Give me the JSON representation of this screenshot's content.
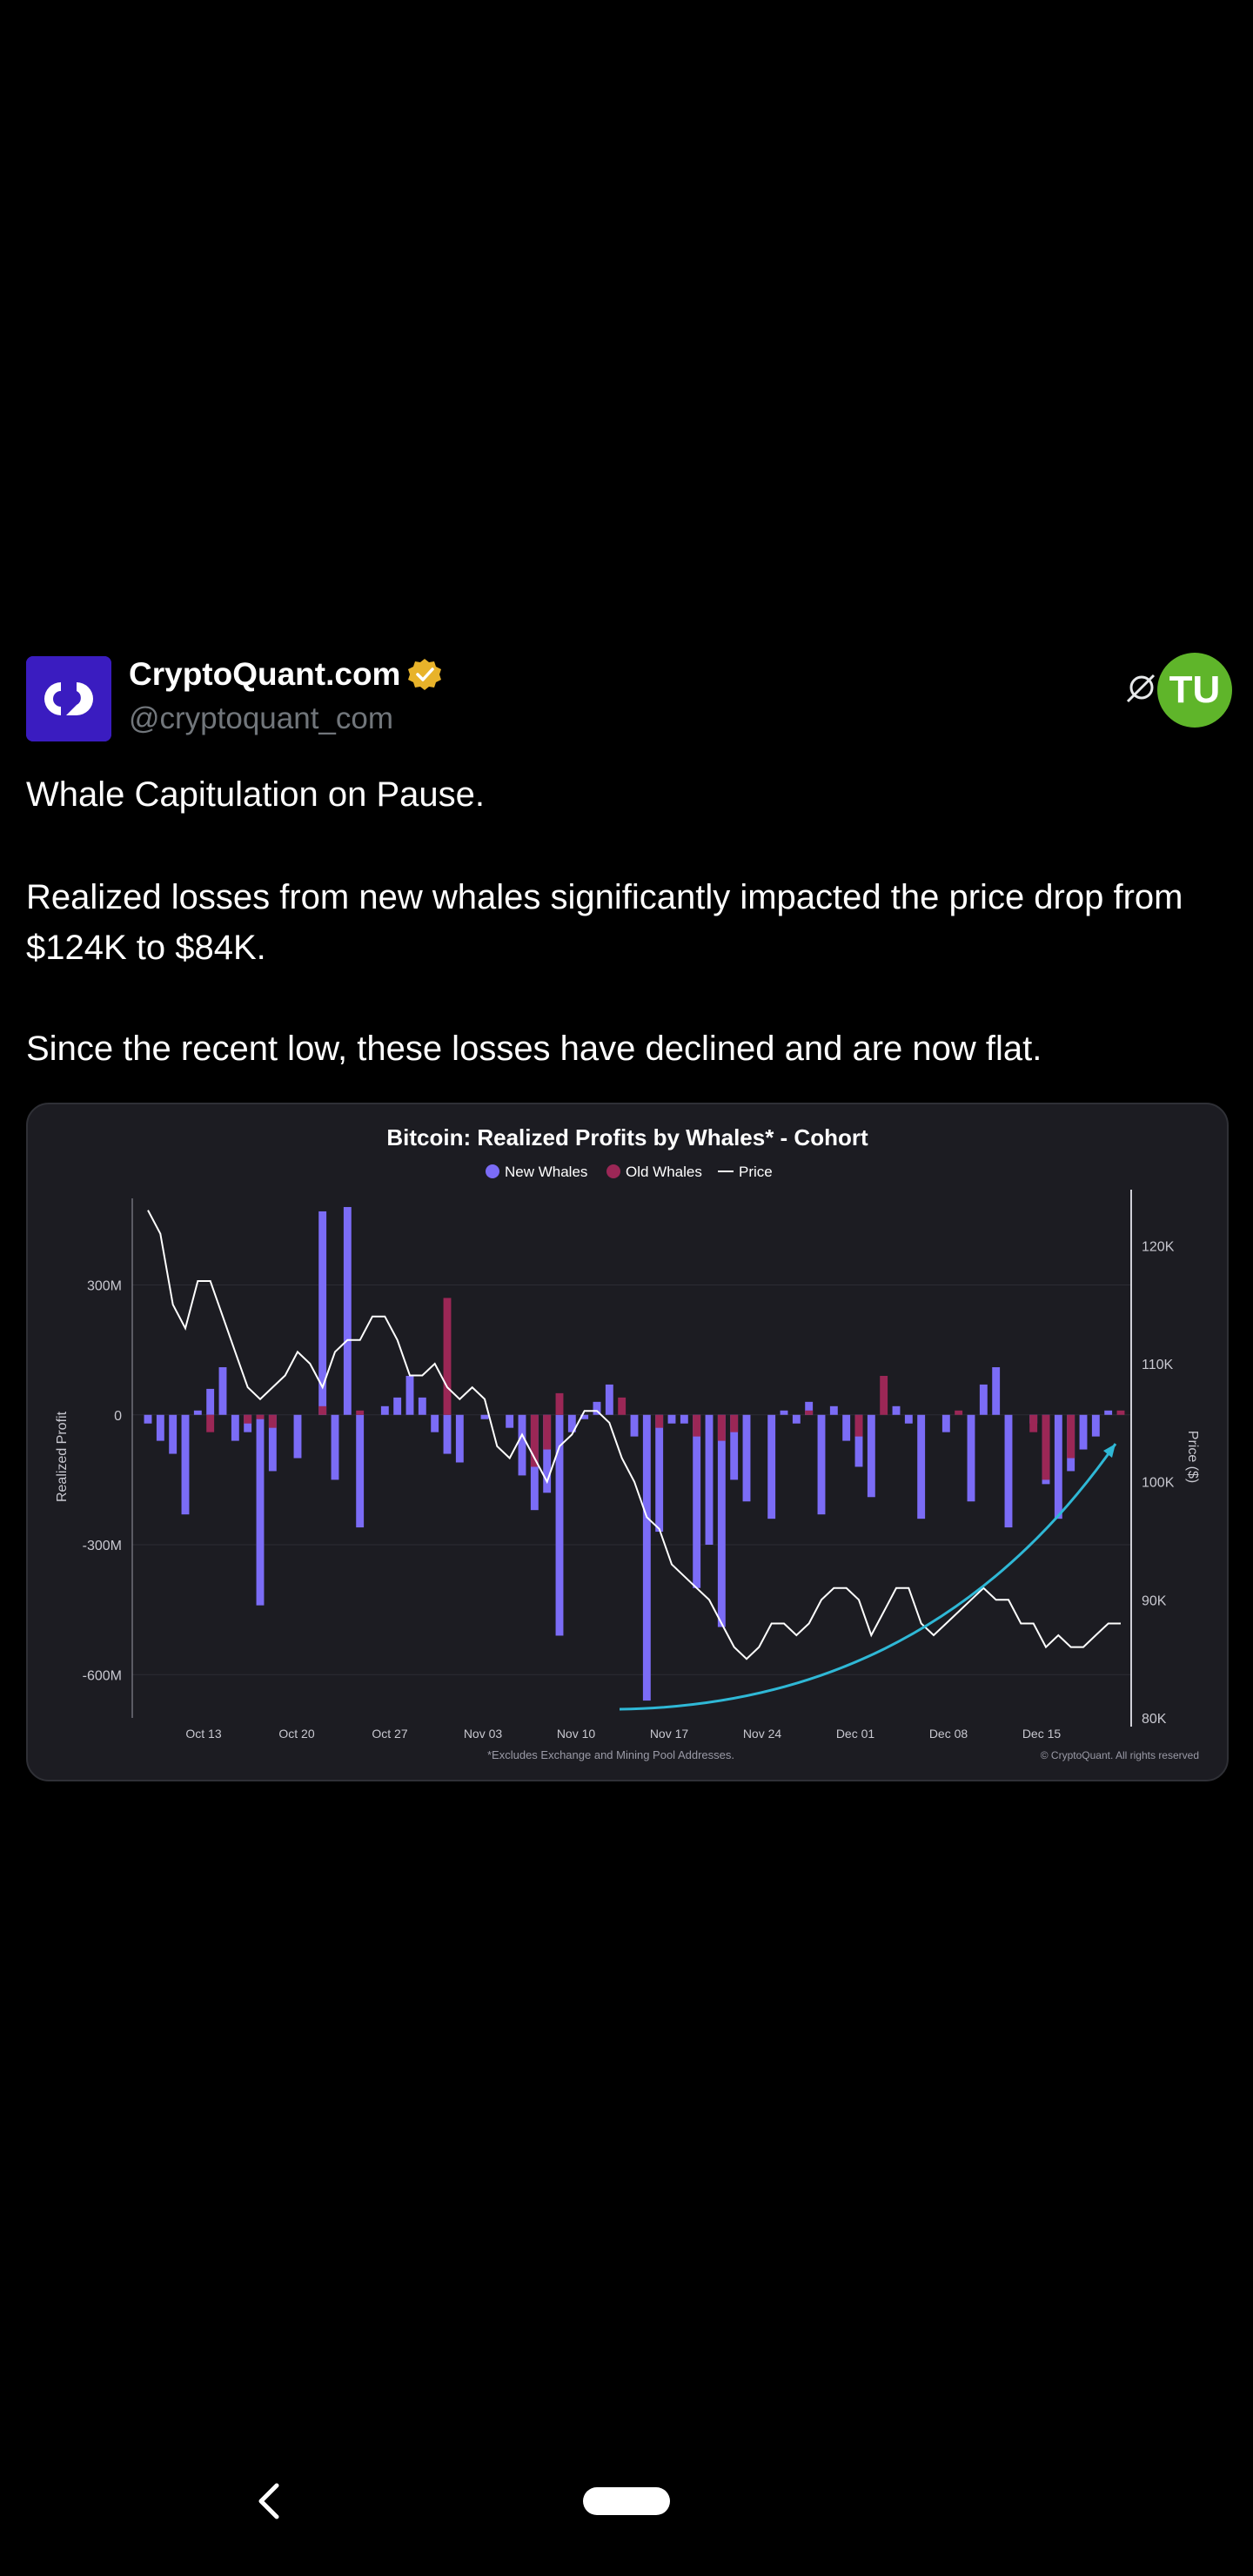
{
  "post": {
    "author_name": "CryptoQuant.com",
    "author_handle": "@cryptoquant_com",
    "badge_label": "TU",
    "paragraphs": [
      "Whale Capitulation on Pause.",
      "Realized losses from new whales significantly impacted the price drop from $124K to $84K.",
      "Since the recent low, these losses have declined and are now flat."
    ]
  },
  "colors": {
    "new_whales": "#7b6cf6",
    "old_whales": "#9b2756",
    "price": "#ffffff",
    "arrow": "#2fb8d6"
  },
  "chart_data": {
    "type": "bar",
    "title": "Bitcoin: Realized Profits by Whales* - Cohort",
    "legend": [
      "New Whales",
      "Old Whales",
      "Price"
    ],
    "ylabel": "Realized Profit",
    "y2label": "Price ($)",
    "ylim": [
      -700,
      500
    ],
    "y2lim": [
      80,
      124
    ],
    "yticks": [
      300,
      0,
      -300,
      -600
    ],
    "ytick_labels": [
      "300M",
      "0",
      "-300M",
      "-600M"
    ],
    "y2ticks": [
      120,
      110,
      100,
      90,
      80
    ],
    "y2tick_labels": [
      "120K",
      "110K",
      "100K",
      "90K",
      "80K"
    ],
    "xtick_labels": [
      "Oct 13",
      "Oct 20",
      "Oct 27",
      "Nov 03",
      "Nov 10",
      "Nov 17",
      "Nov 24",
      "Dec 01",
      "Dec 08",
      "Dec 15"
    ],
    "footnote": "*Excludes Exchange and Mining Pool Addresses.",
    "copyright": "© CryptoQuant. All rights reserved",
    "series": [
      {
        "name": "New Whales",
        "values": [
          -20,
          -60,
          -90,
          -230,
          10,
          60,
          110,
          -60,
          -40,
          -440,
          -130,
          0,
          -100,
          0,
          470,
          -150,
          480,
          -260,
          0,
          20,
          40,
          90,
          40,
          -40,
          -90,
          -110,
          0,
          -10,
          0,
          -30,
          -140,
          -220,
          -180,
          -510,
          -40,
          -10,
          30,
          70,
          0,
          -50,
          -660,
          -270,
          -20,
          -20,
          -400,
          -300,
          -490,
          -150,
          -200,
          0,
          -240,
          10,
          -20,
          30,
          -230,
          20,
          -60,
          -120,
          -190,
          0,
          20,
          -20,
          -240,
          0,
          -40,
          0,
          -200,
          70,
          110,
          -260,
          0,
          -20,
          -160,
          -240,
          -130,
          -80,
          -50,
          10,
          0
        ]
      },
      {
        "name": "Old Whales",
        "values": [
          0,
          0,
          0,
          0,
          0,
          -40,
          0,
          0,
          -20,
          -10,
          -30,
          0,
          0,
          0,
          20,
          0,
          0,
          10,
          0,
          0,
          0,
          0,
          0,
          0,
          270,
          0,
          0,
          0,
          0,
          0,
          0,
          -120,
          -80,
          50,
          0,
          0,
          0,
          0,
          40,
          0,
          0,
          -30,
          0,
          0,
          -50,
          0,
          -60,
          -40,
          0,
          0,
          0,
          0,
          0,
          10,
          0,
          0,
          0,
          -50,
          0,
          90,
          0,
          0,
          0,
          0,
          0,
          10,
          0,
          0,
          0,
          0,
          0,
          -40,
          -150,
          0,
          -100,
          0,
          0,
          0,
          10
        ]
      },
      {
        "name": "Price",
        "values": [
          123,
          121,
          115,
          113,
          117,
          117,
          114,
          111,
          108,
          107,
          108,
          109,
          111,
          110,
          108,
          111,
          112,
          112,
          114,
          114,
          112,
          109,
          109,
          110,
          108,
          107,
          108,
          107,
          103,
          102,
          104,
          102,
          100,
          103,
          104,
          106,
          106,
          105,
          102,
          100,
          97,
          96,
          93,
          92,
          91,
          90,
          88,
          86,
          85,
          86,
          88,
          88,
          87,
          88,
          90,
          91,
          91,
          90,
          87,
          89,
          91,
          91,
          88,
          87,
          88,
          89,
          90,
          91,
          90,
          90,
          88,
          88,
          86,
          87,
          86,
          86,
          87,
          88,
          88
        ]
      }
    ]
  }
}
